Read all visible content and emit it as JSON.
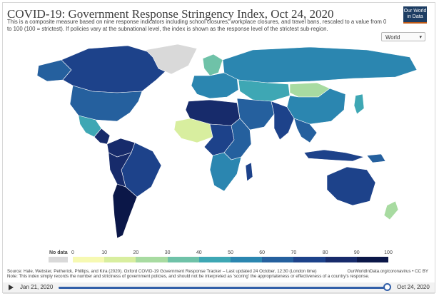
{
  "title": "COVID-19: Government Response Stringency Index, Oct 24, 2020",
  "subtitle": "This is a composite measure based on nine response indicators including school closures, workplace closures, and travel bans, rescaled to a value from 0 to 100 (100 = strictest). If policies vary at the subnational level, the index is shown as the response level of the strictest sub-region.",
  "logo": {
    "line1": "Our World",
    "line2": "in Data"
  },
  "region_select": {
    "value": "World"
  },
  "legend": {
    "nodata_label": "No data",
    "ticks": [
      "0",
      "10",
      "20",
      "30",
      "40",
      "50",
      "60",
      "70",
      "80",
      "90",
      "100"
    ],
    "colors": [
      "#f6f9b2",
      "#d8ee9f",
      "#a8dba1",
      "#6fc2a8",
      "#3ea7b4",
      "#2b86b0",
      "#25609e",
      "#1d428a",
      "#172b6b",
      "#0b1748"
    ]
  },
  "source": {
    "line1": "Source: Hale, Webster, Petherick, Phillips, and Kira (2020). Oxford COVID-19 Government Response Tracker – Last updated 24 October, 12:30 (London time)",
    "line2": "Note: This index simply records the number and strictness of government policies, and should not be interpreted as 'scoring' the appropriateness or effectiveness of a country's response.",
    "right": "OurWorldInData.org/coronavirus • CC BY"
  },
  "timeline": {
    "start": "Jan 21, 2020",
    "end": "Oct 24, 2020",
    "progress": 1.0
  },
  "map_regions": [
    {
      "name": "Canada",
      "color": "#1d428a"
    },
    {
      "name": "United States",
      "color": "#25609e"
    },
    {
      "name": "Greenland",
      "color": "#d9d9d9"
    },
    {
      "name": "Alaska",
      "color": "#25609e"
    },
    {
      "name": "Mexico",
      "color": "#3ea7b4"
    },
    {
      "name": "Central America",
      "color": "#172b6b"
    },
    {
      "name": "Colombia-Venezuela",
      "color": "#172b6b"
    },
    {
      "name": "Brazil",
      "color": "#1d428a"
    },
    {
      "name": "Peru-Bolivia",
      "color": "#172b6b"
    },
    {
      "name": "Argentina-Chile",
      "color": "#0b1748"
    },
    {
      "name": "Europe",
      "color": "#2b86b0"
    },
    {
      "name": "Scandinavia",
      "color": "#6fc2a8"
    },
    {
      "name": "Russia",
      "color": "#2b86b0"
    },
    {
      "name": "Kazakhstan-Central Asia",
      "color": "#3ea7b4"
    },
    {
      "name": "China",
      "color": "#2b86b0"
    },
    {
      "name": "Mongolia",
      "color": "#a8dba1"
    },
    {
      "name": "Middle East",
      "color": "#25609e"
    },
    {
      "name": "India",
      "color": "#1d428a"
    },
    {
      "name": "Southeast Asia",
      "color": "#25609e"
    },
    {
      "name": "Indonesia",
      "color": "#1d428a"
    },
    {
      "name": "Japan",
      "color": "#3ea7b4"
    },
    {
      "name": "North Africa",
      "color": "#172b6b"
    },
    {
      "name": "West Africa",
      "color": "#d8ee9f"
    },
    {
      "name": "Central Africa",
      "color": "#1d428a"
    },
    {
      "name": "East Africa",
      "color": "#25609e"
    },
    {
      "name": "Southern Africa",
      "color": "#2b86b0"
    },
    {
      "name": "Madagascar",
      "color": "#1d428a"
    },
    {
      "name": "Australia",
      "color": "#1d428a"
    },
    {
      "name": "New Zealand",
      "color": "#a8dba1"
    },
    {
      "name": "Papua New Guinea",
      "color": "#25609e"
    }
  ]
}
